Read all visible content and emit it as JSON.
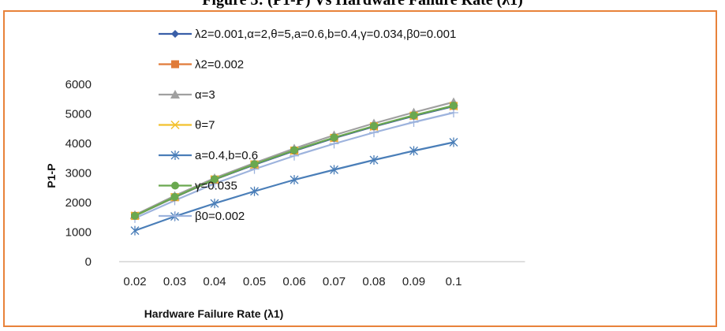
{
  "figure_title": "Figure 3: (P1-P) Vs Hardware Failure Rate (λ1)",
  "chart_data": {
    "type": "line",
    "title": "Figure 3: (P1-P) Vs Hardware Failure Rate (λ1)",
    "xlabel": "Hardware Failure Rate (λ1)",
    "ylabel": "P1-P",
    "categories": [
      "0.02",
      "0.03",
      "0.04",
      "0.05",
      "0.06",
      "0.07",
      "0.08",
      "0.09",
      "0.1"
    ],
    "ylim": [
      0,
      6000
    ],
    "yticks": [
      "0",
      "1000",
      "2000",
      "3000",
      "4000",
      "5000",
      "6000"
    ],
    "grid": false,
    "legend_position": "top",
    "series": [
      {
        "name": "λ2=0.001,α=2,θ=5,a=0.6,b=0.4,γ=0.034,β0=0.001",
        "color": "#3a5fa8",
        "marker": "diamond",
        "values": [
          1550,
          2180,
          2780,
          3280,
          3750,
          4180,
          4570,
          4930,
          5260
        ]
      },
      {
        "name": "λ2=0.002",
        "color": "#e07b39",
        "marker": "square",
        "values": [
          1550,
          2180,
          2780,
          3290,
          3760,
          4190,
          4580,
          4940,
          5270
        ]
      },
      {
        "name": "α=3",
        "color": "#a0a0a0",
        "marker": "triangle",
        "values": [
          1580,
          2230,
          2830,
          3340,
          3830,
          4280,
          4680,
          5050,
          5400
        ]
      },
      {
        "name": "θ=7",
        "color": "#f2c12e",
        "marker": "x",
        "values": [
          1550,
          2180,
          2780,
          3280,
          3750,
          4180,
          4570,
          4930,
          5260
        ]
      },
      {
        "name": "a=0.4,b=0.6",
        "color": "#4a7eb8",
        "marker": "asterisk",
        "values": [
          1050,
          1530,
          1970,
          2380,
          2770,
          3110,
          3440,
          3750,
          4040
        ]
      },
      {
        "name": "γ=0.035",
        "color": "#6aa84f",
        "marker": "circle",
        "values": [
          1550,
          2190,
          2790,
          3300,
          3770,
          4200,
          4590,
          4950,
          5280
        ]
      },
      {
        "name": "β0=0.002",
        "color": "#9db3dd",
        "marker": "plus",
        "values": [
          1470,
          2070,
          2640,
          3130,
          3580,
          3990,
          4370,
          4720,
          5040
        ]
      }
    ]
  }
}
